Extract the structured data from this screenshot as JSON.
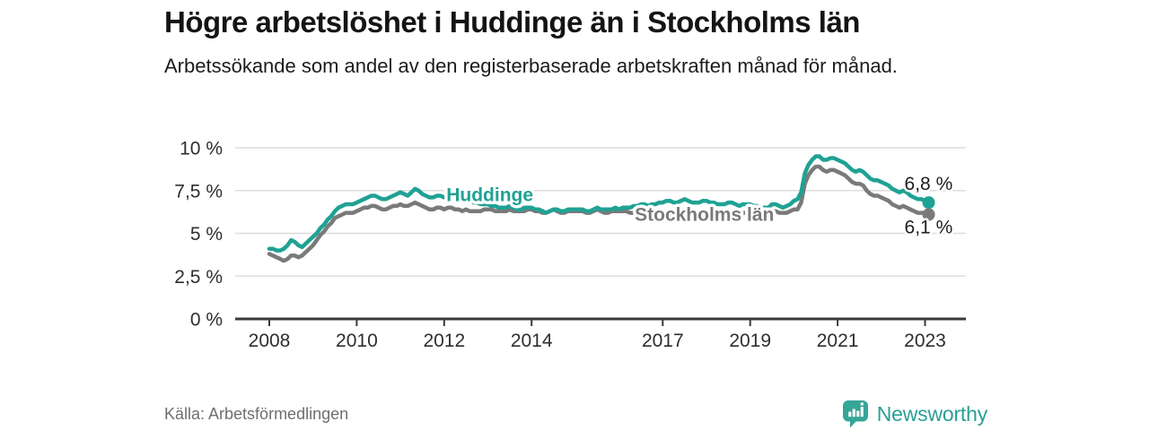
{
  "header": {
    "title": "Högre arbetslöshet i Huddinge än i Stockholms län",
    "subtitle": "Arbetssökande som andel av den registerbaserade arbetskraften månad för månad."
  },
  "footer": {
    "source": "Källa: Arbetsförmedlingen",
    "brand": "Newsworthy"
  },
  "colors": {
    "huddinge": "#1fa294",
    "stockholm": "#7a7a7a",
    "axis": "#3a3a3a",
    "grid": "#dedede",
    "tick_text": "#2e2e2e",
    "value_text": "#1f1f1f",
    "brand_teal": "#35a597"
  },
  "chart_data": {
    "type": "line",
    "title": "Högre arbetslöshet i Huddinge än i Stockholms län",
    "subtitle": "Arbetssökande som andel av den registerbaserade arbetskraften månad för månad.",
    "x_unit": "monthly, January 2008 – February 2023",
    "x_start_year": 2008,
    "x_months_per_step": 1,
    "ylim": [
      0,
      10
    ],
    "grid": true,
    "legend_position": "inline-labels",
    "yticks": [
      {
        "value": 0,
        "label": "0 %"
      },
      {
        "value": 2.5,
        "label": "2,5 %"
      },
      {
        "value": 5,
        "label": "5 %"
      },
      {
        "value": 7.5,
        "label": "7,5 %"
      },
      {
        "value": 10,
        "label": "10 %"
      }
    ],
    "xticks": [
      {
        "value": 2008,
        "label": "2008"
      },
      {
        "value": 2010,
        "label": "2010"
      },
      {
        "value": 2012,
        "label": "2012"
      },
      {
        "value": 2014,
        "label": "2014"
      },
      {
        "value": 2017,
        "label": "2017"
      },
      {
        "value": 2019,
        "label": "2019"
      },
      {
        "value": 2021,
        "label": "2021"
      },
      {
        "value": 2023,
        "label": "2023"
      }
    ],
    "series": [
      {
        "id": "huddinge",
        "name": "Huddinge",
        "color": "#1fa294",
        "end_value": 6.8,
        "end_label": "6,8 %",
        "label_pos": {
          "year": 2012.05,
          "value": 7.28
        },
        "values": [
          4.1,
          4.1,
          4.0,
          4.0,
          4.1,
          4.3,
          4.6,
          4.5,
          4.3,
          4.2,
          4.4,
          4.6,
          4.8,
          5.0,
          5.3,
          5.5,
          5.8,
          6.0,
          6.3,
          6.5,
          6.6,
          6.7,
          6.7,
          6.7,
          6.8,
          6.9,
          7.0,
          7.1,
          7.2,
          7.2,
          7.1,
          7.0,
          7.0,
          7.1,
          7.2,
          7.3,
          7.4,
          7.3,
          7.2,
          7.4,
          7.6,
          7.5,
          7.3,
          7.2,
          7.1,
          7.1,
          7.2,
          7.2,
          7.1,
          7.2,
          7.2,
          7.1,
          7.0,
          7.0,
          7.0,
          6.9,
          6.8,
          6.8,
          6.7,
          6.7,
          6.7,
          6.6,
          6.6,
          6.5,
          6.5,
          6.5,
          6.6,
          6.5,
          6.4,
          6.4,
          6.5,
          6.5,
          6.5,
          6.4,
          6.4,
          6.3,
          6.2,
          6.3,
          6.4,
          6.4,
          6.3,
          6.3,
          6.4,
          6.4,
          6.4,
          6.4,
          6.4,
          6.3,
          6.3,
          6.4,
          6.5,
          6.4,
          6.4,
          6.4,
          6.4,
          6.5,
          6.4,
          6.5,
          6.5,
          6.5,
          6.6,
          6.6,
          6.7,
          6.7,
          6.6,
          6.7,
          6.7,
          6.8,
          6.8,
          6.9,
          6.9,
          6.8,
          6.8,
          6.9,
          7.0,
          6.9,
          6.8,
          6.8,
          6.8,
          6.9,
          6.9,
          6.8,
          6.8,
          6.7,
          6.7,
          6.7,
          6.8,
          6.8,
          6.7,
          6.6,
          6.7,
          6.7,
          6.7,
          6.6,
          6.6,
          6.5,
          6.5,
          6.5,
          6.7,
          6.7,
          6.6,
          6.5,
          6.6,
          6.7,
          6.9,
          7.0,
          7.4,
          8.5,
          9.0,
          9.3,
          9.5,
          9.5,
          9.3,
          9.3,
          9.4,
          9.4,
          9.3,
          9.2,
          9.1,
          8.9,
          8.7,
          8.6,
          8.7,
          8.6,
          8.4,
          8.2,
          8.1,
          8.1,
          8.0,
          7.9,
          7.8,
          7.6,
          7.5,
          7.4,
          7.5,
          7.4,
          7.2,
          7.1,
          7.0,
          7.0,
          6.9,
          6.8
        ]
      },
      {
        "id": "stockholms-lan",
        "name": "Stockholms län",
        "color": "#7a7a7a",
        "end_value": 6.1,
        "end_label": "6,1 %",
        "label_pos": {
          "year": 2016.36,
          "value": 6.13
        },
        "values": [
          3.8,
          3.7,
          3.6,
          3.5,
          3.4,
          3.5,
          3.7,
          3.7,
          3.6,
          3.7,
          3.9,
          4.1,
          4.3,
          4.6,
          4.9,
          5.1,
          5.4,
          5.6,
          5.9,
          6.0,
          6.1,
          6.2,
          6.2,
          6.2,
          6.3,
          6.4,
          6.5,
          6.5,
          6.6,
          6.6,
          6.5,
          6.4,
          6.4,
          6.5,
          6.6,
          6.6,
          6.7,
          6.6,
          6.6,
          6.7,
          6.8,
          6.7,
          6.6,
          6.5,
          6.4,
          6.4,
          6.5,
          6.5,
          6.4,
          6.5,
          6.5,
          6.4,
          6.4,
          6.3,
          6.4,
          6.3,
          6.3,
          6.3,
          6.3,
          6.4,
          6.4,
          6.4,
          6.3,
          6.3,
          6.3,
          6.3,
          6.4,
          6.3,
          6.3,
          6.3,
          6.3,
          6.4,
          6.4,
          6.3,
          6.3,
          6.2,
          6.2,
          6.3,
          6.4,
          6.3,
          6.2,
          6.2,
          6.3,
          6.3,
          6.3,
          6.3,
          6.3,
          6.2,
          6.2,
          6.3,
          6.4,
          6.3,
          6.2,
          6.2,
          6.3,
          6.3,
          6.3,
          6.3,
          6.3,
          6.2,
          6.2,
          6.3,
          6.4,
          6.3,
          6.3,
          6.2,
          6.3,
          6.3,
          6.3,
          6.3,
          6.3,
          6.2,
          6.2,
          6.3,
          6.4,
          6.3,
          6.3,
          6.2,
          6.3,
          6.3,
          6.3,
          6.2,
          6.2,
          6.1,
          6.1,
          6.2,
          6.3,
          6.2,
          6.2,
          6.1,
          6.2,
          6.2,
          6.2,
          6.2,
          6.1,
          6.1,
          6.1,
          6.2,
          6.3,
          6.3,
          6.2,
          6.2,
          6.2,
          6.3,
          6.4,
          6.4,
          6.8,
          7.9,
          8.4,
          8.7,
          8.9,
          8.9,
          8.7,
          8.6,
          8.7,
          8.7,
          8.6,
          8.5,
          8.4,
          8.2,
          8.0,
          7.9,
          7.9,
          7.8,
          7.5,
          7.3,
          7.2,
          7.2,
          7.1,
          7.0,
          6.9,
          6.7,
          6.6,
          6.5,
          6.6,
          6.5,
          6.4,
          6.3,
          6.2,
          6.2,
          6.2,
          6.1
        ]
      }
    ]
  }
}
